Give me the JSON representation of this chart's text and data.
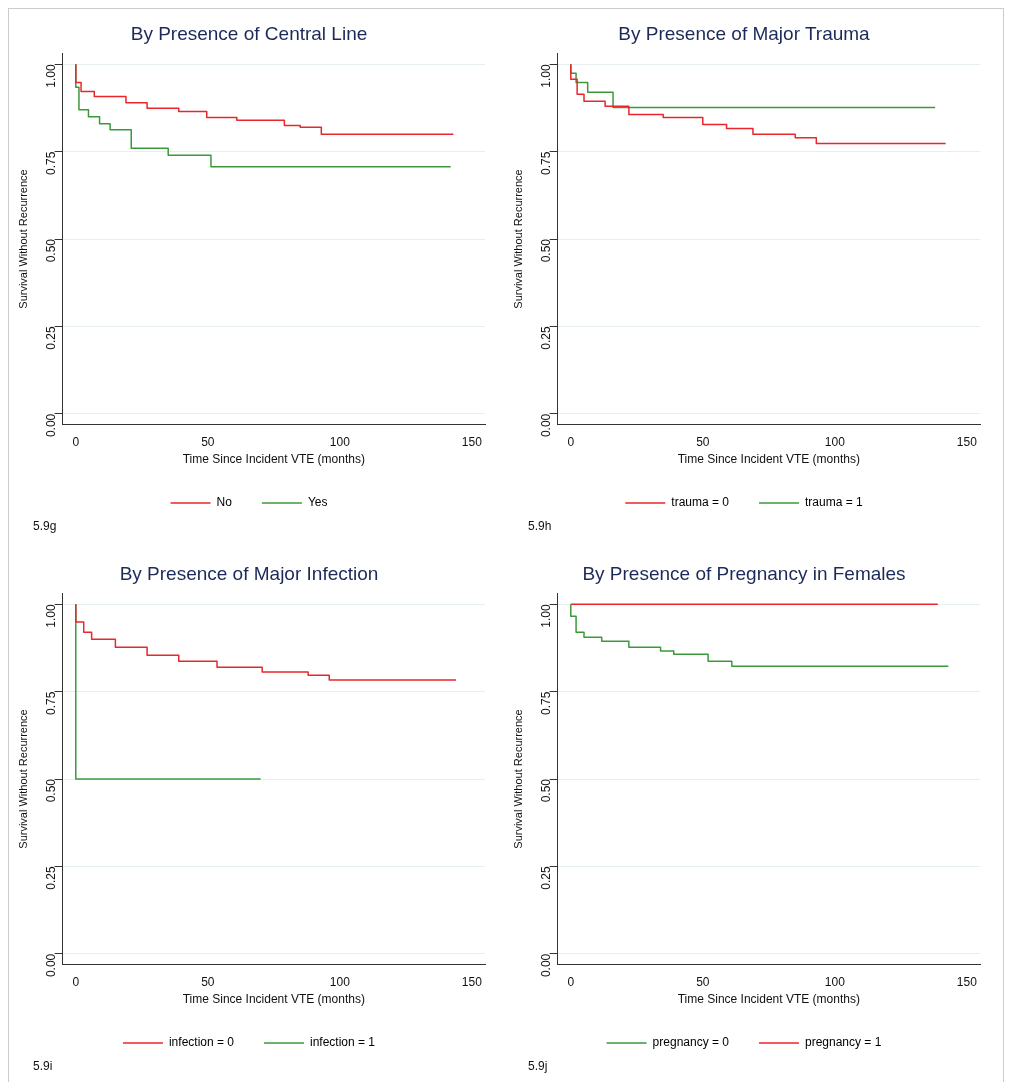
{
  "chart_data": [
    {
      "type": "step",
      "title": "By Presence of Central Line",
      "xlabel": "Time Since Incident VTE (months)",
      "ylabel": "Survival Without Recurrence",
      "xlim": [
        -5,
        155
      ],
      "xticks": [
        0,
        50,
        100,
        150
      ],
      "ylim": [
        -0.03,
        1.03
      ],
      "yticks": [
        {
          "value": 0,
          "label": "0.00"
        },
        {
          "value": 0.25,
          "label": "0.25"
        },
        {
          "value": 0.5,
          "label": "0.50"
        },
        {
          "value": 0.75,
          "label": "0.75"
        },
        {
          "value": 1,
          "label": "1.00"
        }
      ],
      "grid": "y",
      "legend": "bottom",
      "marker": "none",
      "line_style": "solid",
      "annotations": [
        "5.9g"
      ],
      "series": [
        {
          "name": "No",
          "color": "#e8262b",
          "x": [
            0,
            2,
            7,
            19,
            27,
            39,
            49.6,
            61,
            79,
            85,
            93,
            120,
            143
          ],
          "values": [
            1,
            0.948,
            0.922,
            0.908,
            0.89,
            0.874,
            0.865,
            0.848,
            0.84,
            0.825,
            0.82,
            0.8,
            0.8
          ]
        },
        {
          "name": "Yes",
          "color": "#3a9a3a",
          "x": [
            0,
            1.2,
            4.8,
            9,
            13,
            21,
            35,
            51.2,
            70,
            142
          ],
          "values": [
            1,
            0.934,
            0.87,
            0.85,
            0.83,
            0.813,
            0.76,
            0.74,
            0.707,
            0.707
          ]
        }
      ]
    },
    {
      "type": "step",
      "title": "By Presence of Major Trauma",
      "xlabel": "Time Since Incident VTE (months)",
      "ylabel": "Survival Without Recurrence",
      "xlim": [
        -5,
        155
      ],
      "xticks": [
        0,
        50,
        100,
        150
      ],
      "ylim": [
        -0.03,
        1.03
      ],
      "yticks": [
        {
          "value": 0,
          "label": "0.00"
        },
        {
          "value": 0.25,
          "label": "0.25"
        },
        {
          "value": 0.5,
          "label": "0.50"
        },
        {
          "value": 0.75,
          "label": "0.75"
        },
        {
          "value": 1,
          "label": "1.00"
        }
      ],
      "grid": "y",
      "legend": "bottom",
      "marker": "none",
      "line_style": "solid",
      "annotations": [
        "5.9h"
      ],
      "series": [
        {
          "name": "trauma = 0",
          "color": "#e8262b",
          "x": [
            0,
            2.4,
            5,
            13,
            22,
            35,
            50,
            59,
            69,
            85,
            93,
            118.5,
            142
          ],
          "values": [
            1,
            0.957,
            0.914,
            0.894,
            0.88,
            0.856,
            0.848,
            0.828,
            0.816,
            0.8,
            0.79,
            0.773,
            0.773
          ]
        },
        {
          "name": "trauma = 1",
          "color": "#3a9a3a",
          "x": [
            0,
            2,
            6.4,
            16,
            38,
            138
          ],
          "values": [
            1,
            0.974,
            0.948,
            0.92,
            0.876,
            0.876
          ]
        }
      ]
    },
    {
      "type": "step",
      "title": "By Presence of Major Infection",
      "xlabel": "Time Since Incident VTE (months)",
      "ylabel": "Survival Without Recurrence",
      "xlim": [
        -5,
        155
      ],
      "xticks": [
        0,
        50,
        100,
        150
      ],
      "ylim": [
        -0.03,
        1.03
      ],
      "yticks": [
        {
          "value": 0,
          "label": "0.00"
        },
        {
          "value": 0.25,
          "label": "0.25"
        },
        {
          "value": 0.5,
          "label": "0.50"
        },
        {
          "value": 0.75,
          "label": "0.75"
        },
        {
          "value": 1,
          "label": "1.00"
        }
      ],
      "grid": "y",
      "legend": "bottom",
      "marker": "none",
      "line_style": "solid",
      "annotations": [
        "5.9i"
      ],
      "series": [
        {
          "name": "infection = 0",
          "color": "#e8262b",
          "x": [
            0,
            3,
            6,
            15,
            27,
            39,
            53.5,
            70.6,
            88,
            96,
            120,
            144
          ],
          "values": [
            1,
            0.949,
            0.92,
            0.9,
            0.877,
            0.854,
            0.837,
            0.82,
            0.806,
            0.797,
            0.783,
            0.783
          ]
        },
        {
          "name": "infection = 1",
          "color": "#3a9a3a",
          "x": [
            0,
            4.4,
            70
          ],
          "values": [
            1,
            0.5,
            0.5
          ]
        }
      ]
    },
    {
      "type": "step",
      "title": "By Presence of Pregnancy in Females",
      "xlabel": "Time Since Incident VTE (months)",
      "ylabel": "Survival Without Recurrence",
      "xlim": [
        -5,
        155
      ],
      "xticks": [
        0,
        50,
        100,
        150
      ],
      "ylim": [
        -0.03,
        1.03
      ],
      "yticks": [
        {
          "value": 0,
          "label": "0.00"
        },
        {
          "value": 0.25,
          "label": "0.25"
        },
        {
          "value": 0.5,
          "label": "0.50"
        },
        {
          "value": 0.75,
          "label": "0.75"
        },
        {
          "value": 1,
          "label": "1.00"
        }
      ],
      "grid": "y",
      "legend": "bottom",
      "marker": "none",
      "line_style": "solid",
      "annotations": [
        "5.9j"
      ],
      "series": [
        {
          "name": "pregnancy = 0",
          "color": "#3a9a3a",
          "x": [
            0,
            2,
            5,
            11.7,
            22,
            34,
            39,
            52,
            61,
            84.4,
            143
          ],
          "values": [
            1,
            0.966,
            0.92,
            0.906,
            0.894,
            0.877,
            0.866,
            0.857,
            0.837,
            0.823,
            0.823
          ]
        },
        {
          "name": "pregnancy = 1",
          "color": "#e8262b",
          "x": [
            0,
            139
          ],
          "values": [
            1,
            1
          ]
        }
      ]
    }
  ]
}
